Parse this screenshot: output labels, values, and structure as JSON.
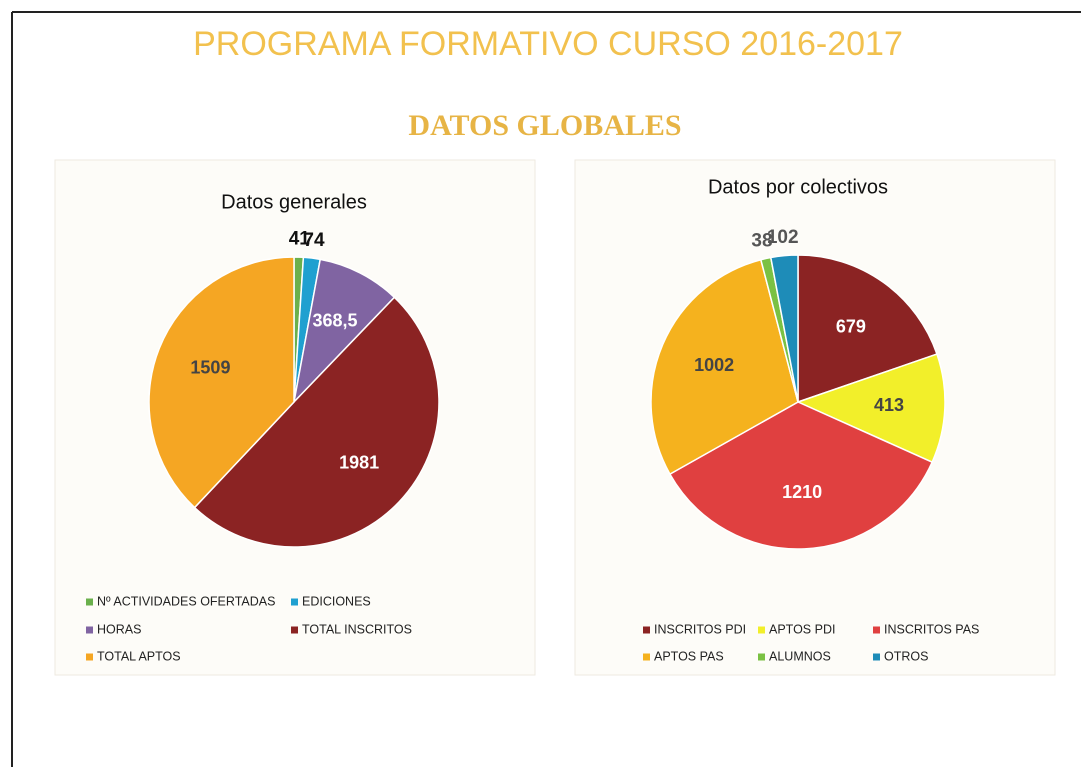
{
  "title": "PROGRAMA FORMATIVO CURSO 2016-2017",
  "subtitle": "DATOS GLOBALES",
  "chart_data": [
    {
      "type": "pie",
      "title": "Datos generales",
      "categories": [
        "Nº ACTIVIDADES OFERTADAS",
        "EDICIONES",
        "HORAS",
        "TOTAL INSCRITOS",
        "TOTAL APTOS"
      ],
      "values": [
        41,
        74,
        368.5,
        1981,
        1509
      ],
      "value_labels": [
        "41",
        "74",
        "368,5",
        "1981",
        "1509"
      ],
      "colors": [
        "#6ab04c",
        "#1fa0d0",
        "#8064a2",
        "#8b2323",
        "#f5a623"
      ],
      "legend": "bottom"
    },
    {
      "type": "pie",
      "title": "Datos por colectivos",
      "categories": [
        "INSCRITOS PDI",
        "APTOS PDI",
        "INSCRITOS PAS",
        "APTOS PAS",
        "ALUMNOS",
        "OTROS"
      ],
      "values": [
        679,
        413,
        1210,
        1002,
        38,
        102
      ],
      "value_labels": [
        "679",
        "413",
        "1210",
        "1002",
        "38",
        "102"
      ],
      "colors": [
        "#8b2323",
        "#f2ef2a",
        "#e04040",
        "#f5b21e",
        "#7ac143",
        "#1e8cb8"
      ],
      "legend": "bottom"
    }
  ]
}
